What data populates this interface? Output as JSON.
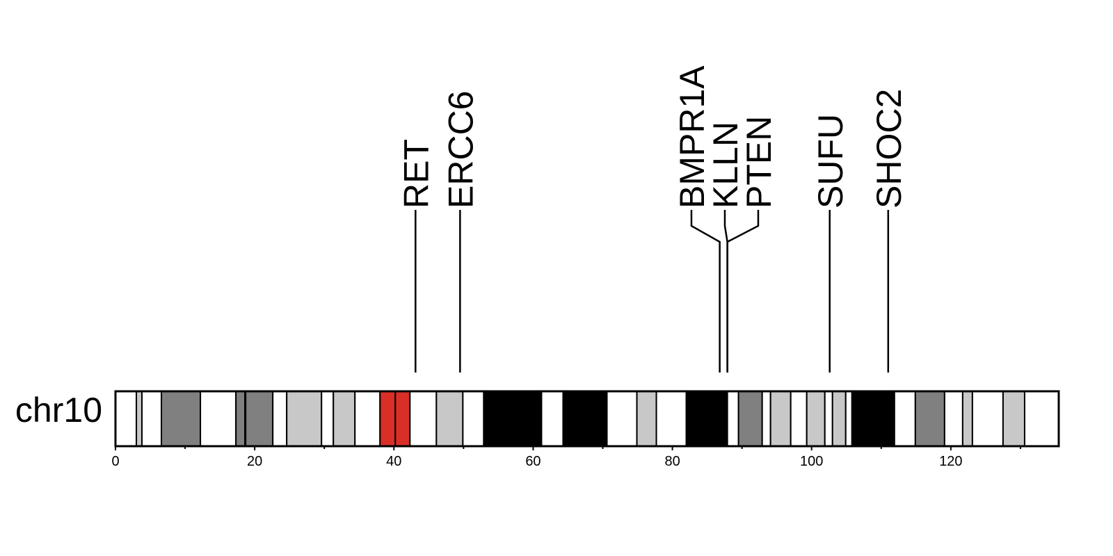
{
  "chromosome": {
    "name": "chr10",
    "length_mb": 135.5,
    "bands": [
      {
        "start": 0.0,
        "end": 3.0,
        "stain": "gneg"
      },
      {
        "start": 3.0,
        "end": 3.8,
        "stain": "gpos25"
      },
      {
        "start": 3.8,
        "end": 6.6,
        "stain": "gneg"
      },
      {
        "start": 6.6,
        "end": 12.2,
        "stain": "gpos50"
      },
      {
        "start": 12.2,
        "end": 17.3,
        "stain": "gneg"
      },
      {
        "start": 17.3,
        "end": 18.6,
        "stain": "gpos50"
      },
      {
        "start": 18.6,
        "end": 18.7,
        "stain": "gneg"
      },
      {
        "start": 18.7,
        "end": 22.6,
        "stain": "gpos50"
      },
      {
        "start": 22.6,
        "end": 24.6,
        "stain": "gneg"
      },
      {
        "start": 24.6,
        "end": 29.6,
        "stain": "gpos25"
      },
      {
        "start": 29.6,
        "end": 31.3,
        "stain": "gneg"
      },
      {
        "start": 31.3,
        "end": 34.4,
        "stain": "gpos25"
      },
      {
        "start": 34.4,
        "end": 38.0,
        "stain": "gneg"
      },
      {
        "start": 38.0,
        "end": 40.2,
        "stain": "acen"
      },
      {
        "start": 40.2,
        "end": 42.3,
        "stain": "acen"
      },
      {
        "start": 42.3,
        "end": 46.1,
        "stain": "gneg"
      },
      {
        "start": 46.1,
        "end": 49.9,
        "stain": "gpos25"
      },
      {
        "start": 49.9,
        "end": 52.9,
        "stain": "gneg"
      },
      {
        "start": 52.9,
        "end": 61.2,
        "stain": "gpos100"
      },
      {
        "start": 61.2,
        "end": 64.3,
        "stain": "gneg"
      },
      {
        "start": 64.3,
        "end": 70.6,
        "stain": "gpos100"
      },
      {
        "start": 70.6,
        "end": 74.9,
        "stain": "gneg"
      },
      {
        "start": 74.9,
        "end": 77.7,
        "stain": "gpos25"
      },
      {
        "start": 77.7,
        "end": 82.0,
        "stain": "gneg"
      },
      {
        "start": 82.0,
        "end": 87.9,
        "stain": "gpos100"
      },
      {
        "start": 87.9,
        "end": 89.5,
        "stain": "gneg"
      },
      {
        "start": 89.5,
        "end": 92.9,
        "stain": "gpos50"
      },
      {
        "start": 92.9,
        "end": 94.1,
        "stain": "gneg"
      },
      {
        "start": 94.1,
        "end": 97.0,
        "stain": "gpos25"
      },
      {
        "start": 97.0,
        "end": 99.3,
        "stain": "gneg"
      },
      {
        "start": 99.3,
        "end": 101.9,
        "stain": "gpos25"
      },
      {
        "start": 101.9,
        "end": 103.0,
        "stain": "gneg"
      },
      {
        "start": 103.0,
        "end": 104.9,
        "stain": "gpos25"
      },
      {
        "start": 104.9,
        "end": 105.8,
        "stain": "gneg"
      },
      {
        "start": 105.8,
        "end": 111.9,
        "stain": "gpos100"
      },
      {
        "start": 111.9,
        "end": 114.9,
        "stain": "gneg"
      },
      {
        "start": 114.9,
        "end": 119.1,
        "stain": "gpos50"
      },
      {
        "start": 119.1,
        "end": 121.7,
        "stain": "gneg"
      },
      {
        "start": 121.7,
        "end": 123.1,
        "stain": "gpos25"
      },
      {
        "start": 123.1,
        "end": 127.5,
        "stain": "gneg"
      },
      {
        "start": 127.5,
        "end": 130.6,
        "stain": "gpos25"
      },
      {
        "start": 130.6,
        "end": 135.5,
        "stain": "gneg"
      }
    ]
  },
  "stain_colors": {
    "gneg": "#ffffff",
    "gpos25": "#c8c8c8",
    "gpos50": "#808080",
    "gpos100": "#000000",
    "acen": "#d92f27"
  },
  "axis": {
    "ticks": [
      0,
      20,
      40,
      60,
      80,
      100,
      120
    ],
    "tick_labels": [
      "0",
      "20",
      "40",
      "60",
      "80",
      "100",
      "120"
    ],
    "minor_step": 10
  },
  "genes": [
    {
      "name": "RET",
      "position_mb": 43.1
    },
    {
      "name": "ERCC6",
      "position_mb": 49.5
    },
    {
      "name": "BMPR1A",
      "position_mb": 86.8
    },
    {
      "name": "KLLN",
      "position_mb": 87.9
    },
    {
      "name": "PTEN",
      "position_mb": 87.9
    },
    {
      "name": "SUFU",
      "position_mb": 102.6
    },
    {
      "name": "SHOC2",
      "position_mb": 111.0
    }
  ]
}
